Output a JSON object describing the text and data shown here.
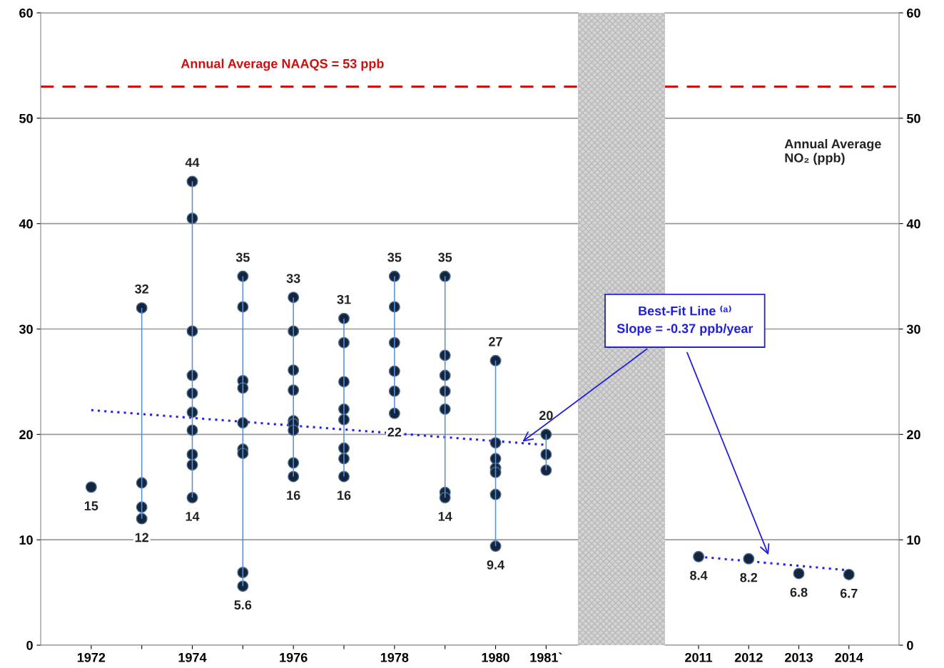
{
  "chart_data": [
    {
      "type": "scatter",
      "xlim": [
        1971,
        1981.63
      ],
      "xticks": [
        {
          "value": 1972,
          "label": "1972"
        },
        {
          "value": 1973,
          "label": null
        },
        {
          "value": 1974,
          "label": "1974"
        },
        {
          "value": 1975,
          "label": null
        },
        {
          "value": 1976,
          "label": "1976"
        },
        {
          "value": 1977,
          "label": null
        },
        {
          "value": 1978,
          "label": "1978"
        },
        {
          "value": 1979,
          "label": null
        },
        {
          "value": 1980,
          "label": "1980"
        },
        {
          "value": 1981,
          "label": "1981`"
        }
      ],
      "ylim": [
        0,
        60
      ],
      "yticks": [
        0,
        10,
        20,
        30,
        40,
        50,
        60
      ],
      "grid": "y",
      "series": [
        {
          "type": "bar",
          "color": "#5b8fd0",
          "x": [
            1973,
            1974,
            1975,
            1976,
            1977,
            1978,
            1979,
            1980,
            1981
          ],
          "base": [
            12,
            14,
            5.6,
            16,
            16,
            22,
            14,
            9.4,
            16.6
          ],
          "values": [
            20,
            30,
            29.4,
            17,
            15,
            13,
            21,
            17.6,
            3.4
          ]
        },
        {
          "color": "#14263f",
          "marker": "circle",
          "x": [
            1972,
            1973,
            1973,
            1973,
            1973,
            1974,
            1974,
            1974,
            1974,
            1974,
            1974,
            1974,
            1974,
            1974,
            1974,
            1975,
            1975,
            1975,
            1975,
            1975,
            1975,
            1975,
            1975,
            1975,
            1976,
            1976,
            1976,
            1976,
            1976,
            1976,
            1976,
            1976,
            1976,
            1977,
            1977,
            1977,
            1977,
            1977,
            1977,
            1977,
            1977,
            1978,
            1978,
            1978,
            1978,
            1978,
            1978,
            1979,
            1979,
            1979,
            1979,
            1979,
            1979,
            1979,
            1980,
            1980,
            1980,
            1980,
            1980,
            1980,
            1980,
            1981,
            1981,
            1981
          ],
          "values": [
            15,
            32,
            15.4,
            13.1,
            12,
            44,
            40.5,
            29.8,
            25.6,
            23.9,
            22.1,
            20.4,
            18.1,
            17.1,
            14,
            35,
            32.1,
            25.1,
            24.4,
            21.1,
            18.6,
            18.2,
            6.9,
            5.6,
            33,
            29.8,
            26.1,
            24.2,
            21.3,
            21.0,
            20.4,
            17.3,
            16,
            31,
            28.7,
            25.0,
            22.4,
            21.4,
            18.7,
            17.7,
            16,
            35,
            32.1,
            28.7,
            26.0,
            24.1,
            22,
            35,
            27.5,
            25.6,
            24.1,
            22.4,
            14.5,
            14,
            27,
            19.2,
            17.7,
            16.8,
            16.4,
            14.3,
            9.4,
            20,
            18.1,
            16.6
          ],
          "value_labels": [
            "15",
            "32",
            null,
            null,
            "12",
            "44",
            null,
            null,
            null,
            null,
            null,
            null,
            null,
            null,
            "14",
            "35",
            null,
            null,
            null,
            null,
            null,
            null,
            null,
            "5.6",
            "33",
            null,
            null,
            null,
            null,
            null,
            null,
            null,
            "16",
            "31",
            null,
            null,
            null,
            null,
            null,
            null,
            "16",
            "35",
            null,
            null,
            null,
            null,
            "22",
            "35",
            null,
            null,
            null,
            null,
            null,
            "14",
            "27",
            null,
            null,
            null,
            null,
            null,
            "9.4",
            "20",
            null,
            null
          ]
        },
        {
          "type": "line",
          "color": "#2222ee",
          "line_style": "dotted",
          "x": [
            1972,
            1981
          ],
          "values": [
            22.3,
            19.0
          ]
        }
      ],
      "ref_lines": [
        {
          "axis": "y",
          "value": 53,
          "label": "Annual Average NAAQS = 53 ppb",
          "color": "#cc1111",
          "line_style": "dashed"
        }
      ],
      "annotations": [
        {
          "text": "Best-Fit Line ⁽ᵃ⁾\nSlope = -0.37 ppb/year",
          "x": 1980.5,
          "y": 19.2
        }
      ]
    },
    {
      "type": "scatter",
      "xlim": [
        2010.33,
        2015
      ],
      "xticks": [
        2011,
        2012,
        2013,
        2014
      ],
      "y2lim": [
        0,
        60
      ],
      "y2ticks": [
        0,
        10,
        20,
        30,
        40,
        50,
        60
      ],
      "grid": "y",
      "y2label": "Annual Average\nNO₂ (ppb)",
      "series": [
        {
          "axis": "y2",
          "color": "#14263f",
          "marker": "circle",
          "x": [
            2011,
            2012,
            2013,
            2014
          ],
          "values": [
            8.4,
            8.2,
            6.8,
            6.7
          ],
          "value_labels": [
            "8.4",
            "8.2",
            "6.8",
            "6.7"
          ]
        },
        {
          "type": "line",
          "axis": "y2",
          "color": "#2222ee",
          "line_style": "dotted",
          "x": [
            2011,
            2014
          ],
          "values": [
            8.4,
            7.1
          ]
        }
      ],
      "ref_lines": [
        {
          "axis": "y2",
          "value": 53,
          "color": "#cc1111",
          "line_style": "dashed"
        }
      ]
    }
  ]
}
